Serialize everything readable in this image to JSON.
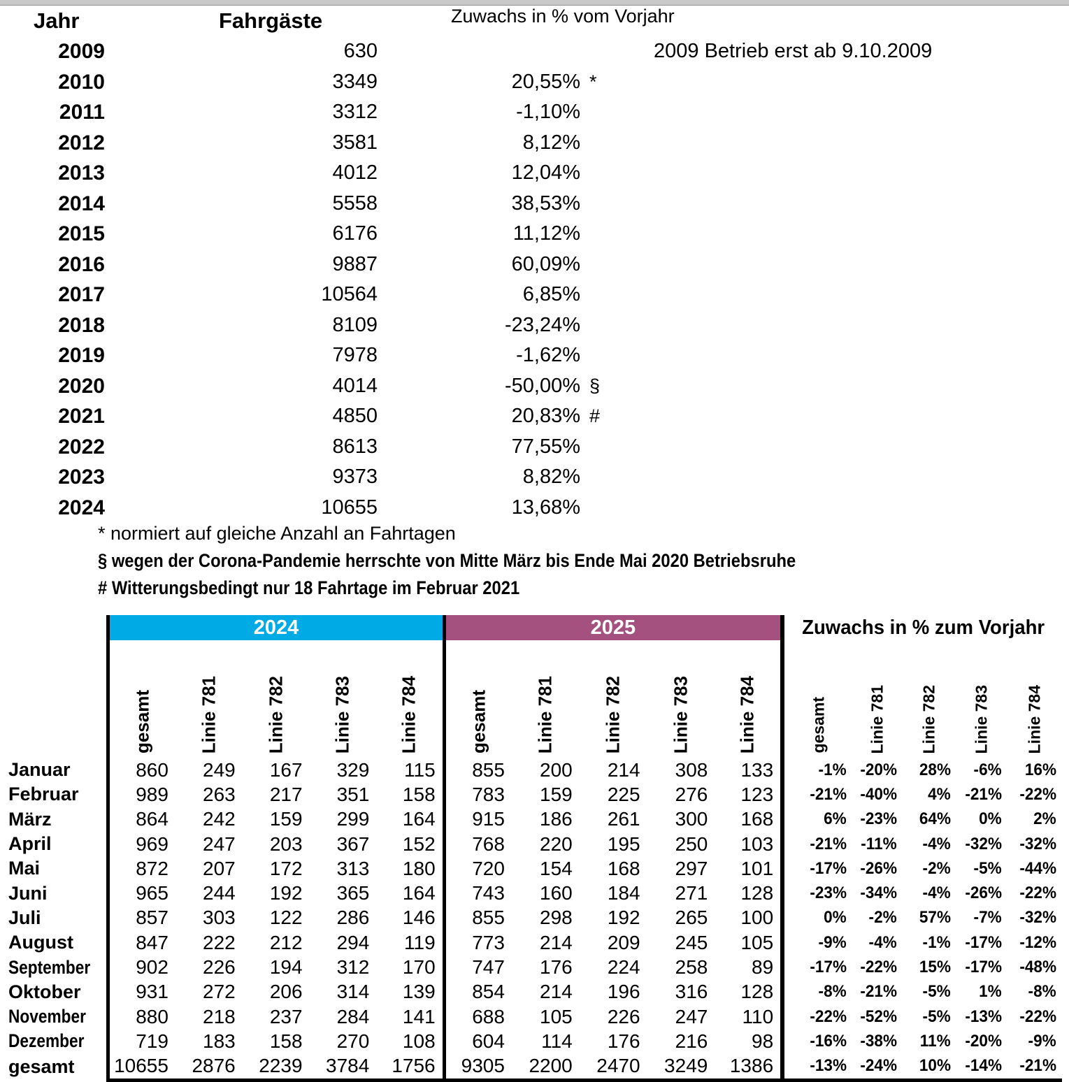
{
  "page": {
    "top_strip_color": "#c9c9c9"
  },
  "yearly": {
    "headers": {
      "jahr": "Jahr",
      "fahrgaeste": "Fahrgäste",
      "zuwachs": "Zuwachs in % vom Vorjahr"
    },
    "rows": [
      {
        "year": "2009",
        "passengers": "630",
        "growth": "",
        "marker": "",
        "note": "2009 Betrieb erst ab 9.10.2009"
      },
      {
        "year": "2010",
        "passengers": "3349",
        "growth": "20,55%",
        "marker": "*",
        "note": ""
      },
      {
        "year": "2011",
        "passengers": "3312",
        "growth": "-1,10%",
        "marker": "",
        "note": ""
      },
      {
        "year": "2012",
        "passengers": "3581",
        "growth": "8,12%",
        "marker": "",
        "note": ""
      },
      {
        "year": "2013",
        "passengers": "4012",
        "growth": "12,04%",
        "marker": "",
        "note": ""
      },
      {
        "year": "2014",
        "passengers": "5558",
        "growth": "38,53%",
        "marker": "",
        "note": ""
      },
      {
        "year": "2015",
        "passengers": "6176",
        "growth": "11,12%",
        "marker": "",
        "note": ""
      },
      {
        "year": "2016",
        "passengers": "9887",
        "growth": "60,09%",
        "marker": "",
        "note": ""
      },
      {
        "year": "2017",
        "passengers": "10564",
        "growth": "6,85%",
        "marker": "",
        "note": ""
      },
      {
        "year": "2018",
        "passengers": "8109",
        "growth": "-23,24%",
        "marker": "",
        "note": ""
      },
      {
        "year": "2019",
        "passengers": "7978",
        "growth": "-1,62%",
        "marker": "",
        "note": ""
      },
      {
        "year": "2020",
        "passengers": "4014",
        "growth": "-50,00%",
        "marker": "§",
        "note": ""
      },
      {
        "year": "2021",
        "passengers": "4850",
        "growth": "20,83%",
        "marker": "#",
        "note": ""
      },
      {
        "year": "2022",
        "passengers": "8613",
        "growth": "77,55%",
        "marker": "",
        "note": ""
      },
      {
        "year": "2023",
        "passengers": "9373",
        "growth": "8,82%",
        "marker": "",
        "note": ""
      },
      {
        "year": "2024",
        "passengers": "10655",
        "growth": "13,68%",
        "marker": "",
        "note": ""
      }
    ],
    "footnotes": [
      {
        "text": "* normiert auf gleiche Anzahl an Fahrtagen",
        "style": "regular"
      },
      {
        "text": "§ wegen der Corona-Pandemie herrschte von Mitte März bis Ende Mai 2020 Betriebsruhe",
        "style": "bold"
      },
      {
        "text": "# Witterungsbedingt nur 18 Fahrtage im Februar 2021",
        "style": "bold"
      }
    ]
  },
  "monthly": {
    "groups": [
      {
        "label": "2024",
        "color": "#00aae4"
      },
      {
        "label": "2025",
        "color": "#a5517f"
      }
    ],
    "growth_title": "Zuwachs in % zum Vorjahr",
    "columns": [
      "gesamt",
      "Linie 781",
      "Linie 782",
      "Linie 783",
      "Linie 784"
    ],
    "months": [
      "Januar",
      "Februar",
      "März",
      "April",
      "Mai",
      "Juni",
      "Juli",
      "August",
      "September",
      "Oktober",
      "November",
      "Dezember",
      "gesamt"
    ],
    "data_2024": [
      [
        860,
        249,
        167,
        329,
        115
      ],
      [
        989,
        263,
        217,
        351,
        158
      ],
      [
        864,
        242,
        159,
        299,
        164
      ],
      [
        969,
        247,
        203,
        367,
        152
      ],
      [
        872,
        207,
        172,
        313,
        180
      ],
      [
        965,
        244,
        192,
        365,
        164
      ],
      [
        857,
        303,
        122,
        286,
        146
      ],
      [
        847,
        222,
        212,
        294,
        119
      ],
      [
        902,
        226,
        194,
        312,
        170
      ],
      [
        931,
        272,
        206,
        314,
        139
      ],
      [
        880,
        218,
        237,
        284,
        141
      ],
      [
        719,
        183,
        158,
        270,
        108
      ],
      [
        10655,
        2876,
        2239,
        3784,
        1756
      ]
    ],
    "data_2025": [
      [
        855,
        200,
        214,
        308,
        133
      ],
      [
        783,
        159,
        225,
        276,
        123
      ],
      [
        915,
        186,
        261,
        300,
        168
      ],
      [
        768,
        220,
        195,
        250,
        103
      ],
      [
        720,
        154,
        168,
        297,
        101
      ],
      [
        743,
        160,
        184,
        271,
        128
      ],
      [
        855,
        298,
        192,
        265,
        100
      ],
      [
        773,
        214,
        209,
        245,
        105
      ],
      [
        747,
        176,
        224,
        258,
        89
      ],
      [
        854,
        214,
        196,
        316,
        128
      ],
      [
        688,
        105,
        226,
        247,
        110
      ],
      [
        604,
        114,
        176,
        216,
        98
      ],
      [
        9305,
        2200,
        2470,
        3249,
        1386
      ]
    ],
    "growth": [
      [
        "-1%",
        "-20%",
        "28%",
        "-6%",
        "16%"
      ],
      [
        "-21%",
        "-40%",
        "4%",
        "-21%",
        "-22%"
      ],
      [
        "6%",
        "-23%",
        "64%",
        "0%",
        "2%"
      ],
      [
        "-21%",
        "-11%",
        "-4%",
        "-32%",
        "-32%"
      ],
      [
        "-17%",
        "-26%",
        "-2%",
        "-5%",
        "-44%"
      ],
      [
        "-23%",
        "-34%",
        "-4%",
        "-26%",
        "-22%"
      ],
      [
        "0%",
        "-2%",
        "57%",
        "-7%",
        "-32%"
      ],
      [
        "-9%",
        "-4%",
        "-1%",
        "-17%",
        "-12%"
      ],
      [
        "-17%",
        "-22%",
        "15%",
        "-17%",
        "-48%"
      ],
      [
        "-8%",
        "-21%",
        "-5%",
        "1%",
        "-8%"
      ],
      [
        "-22%",
        "-52%",
        "-5%",
        "-13%",
        "-22%"
      ],
      [
        "-16%",
        "-38%",
        "11%",
        "-20%",
        "-9%"
      ],
      [
        "-13%",
        "-24%",
        "10%",
        "-14%",
        "-21%"
      ]
    ]
  }
}
